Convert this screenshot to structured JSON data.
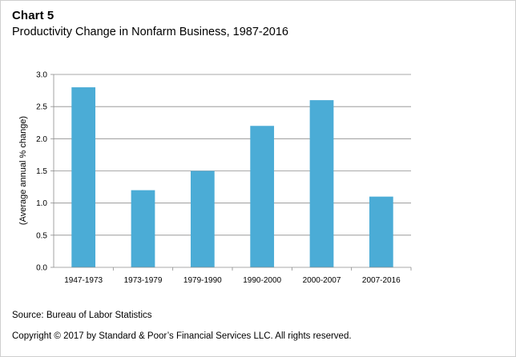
{
  "header": {
    "chart_number": "Chart 5",
    "title": "Productivity Change in Nonfarm Business, 1987-2016"
  },
  "chart_data": {
    "type": "bar",
    "title": "Productivity Change in Nonfarm Business, 1987-2016",
    "categories": [
      "1947-1973",
      "1973-1979",
      "1979-1990",
      "1990-2000",
      "2000-2007",
      "2007-2016"
    ],
    "values": [
      2.8,
      1.2,
      1.5,
      2.2,
      2.6,
      1.1
    ],
    "xlabel": "",
    "ylabel": "(Average annual % change)",
    "ylim": [
      0,
      3.0
    ],
    "yticks": [
      "0.0",
      "0.5",
      "1.0",
      "1.5",
      "2.0",
      "2.5",
      "3.0"
    ],
    "bar_color": "#4bacd6",
    "grid": true,
    "legend": "none"
  },
  "footer": {
    "source": "Source: Bureau of Labor Statistics",
    "copyright": "Copyright © 2017 by Standard & Poor’s Financial Services LLC. All rights reserved."
  }
}
